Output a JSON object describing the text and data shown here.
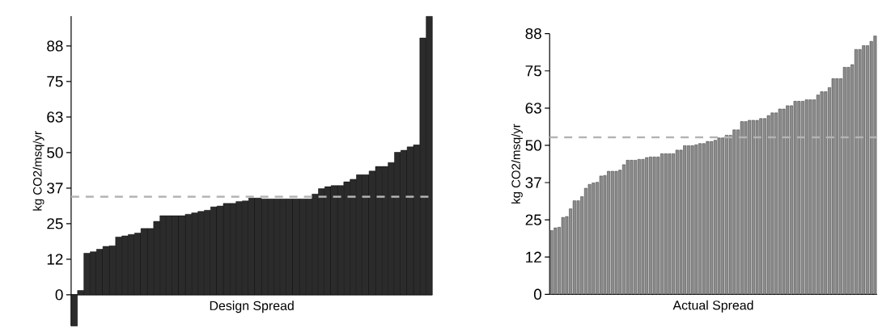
{
  "chart_data": [
    {
      "type": "bar",
      "xlabel": "Design Spread",
      "ylabel": "kg CO2/msq/yr",
      "color": "#2b2b2b",
      "tick_labels": "y",
      "categories": [
        null,
        null,
        null,
        null,
        null,
        null,
        null,
        null,
        null,
        null,
        null,
        null,
        null,
        null,
        null,
        null,
        null,
        null,
        null,
        null,
        null,
        null,
        null,
        null,
        null,
        null,
        null,
        null,
        null,
        null,
        null,
        null,
        null,
        null,
        null,
        null,
        null,
        null,
        null,
        null,
        null,
        null,
        null,
        null,
        null,
        null,
        null,
        null,
        null,
        null,
        null,
        null,
        null,
        null,
        null,
        null,
        null
      ],
      "values": [
        -11,
        1.5,
        14.6,
        15.1,
        16,
        17,
        17.2,
        20.3,
        20.7,
        21.2,
        21.7,
        23.3,
        23.3,
        25.8,
        27.8,
        27.8,
        27.8,
        27.8,
        28.3,
        28.8,
        29.3,
        29.7,
        30.9,
        31.2,
        32.1,
        32.1,
        32.8,
        33,
        34,
        34,
        33.7,
        33.7,
        33.7,
        33.7,
        33.7,
        33.7,
        33.7,
        33.7,
        35.4,
        37.3,
        38,
        38.4,
        38.4,
        39.7,
        40.6,
        42.2,
        42.2,
        43.5,
        45.1,
        45.1,
        46.5,
        50.1,
        50.8,
        52,
        52.7,
        90.3,
        97.9
      ],
      "ylim": [
        -11,
        98
      ],
      "yticks": [
        0,
        {
          "value": 12.5,
          "label": "12"
        },
        25,
        {
          "value": 37.5,
          "label": "37"
        },
        50,
        {
          "value": 62.5,
          "label": "63"
        },
        75,
        {
          "value": 87.5,
          "label": "88"
        }
      ],
      "ref_lines": [
        {
          "axis": "y",
          "value": 34.5,
          "color": "#b4b4b4",
          "line_style": "dashed"
        }
      ]
    },
    {
      "type": "bar",
      "xlabel": "Actual Spread",
      "ylabel": "kg CO2/msq/yr",
      "color": "#8c8c8c",
      "tick_labels": "y",
      "categories": [
        null,
        null,
        null,
        null,
        null,
        null,
        null,
        null,
        null,
        null,
        null,
        null,
        null,
        null,
        null,
        null,
        null,
        null,
        null,
        null,
        null,
        null,
        null,
        null,
        null,
        null,
        null,
        null,
        null,
        null,
        null,
        null,
        null,
        null,
        null,
        null,
        null,
        null,
        null,
        null,
        null,
        null,
        null,
        null,
        null,
        null,
        null,
        null,
        null,
        null,
        null,
        null,
        null,
        null,
        null,
        null,
        null,
        null,
        null,
        null,
        null,
        null,
        null,
        null,
        null,
        null,
        null,
        null,
        null,
        null,
        null,
        null,
        null,
        null,
        null,
        null,
        null,
        null,
        null,
        null,
        null,
        null,
        null,
        null,
        null,
        null
      ],
      "values": [
        21.4,
        22.3,
        22.5,
        25.8,
        26.1,
        28.7,
        31.4,
        31.4,
        32.8,
        35.6,
        36.9,
        37.4,
        37.6,
        39.7,
        39.9,
        41.3,
        41.3,
        41.3,
        41.7,
        43.5,
        45,
        45,
        45,
        45.3,
        45.3,
        45.9,
        46.1,
        46.1,
        46.1,
        47.2,
        47.2,
        47.2,
        47.2,
        48.4,
        48.4,
        49.9,
        49.9,
        49.9,
        50.2,
        50.6,
        50.6,
        51.3,
        51.3,
        51.7,
        52.5,
        52.5,
        53.4,
        53.4,
        55.2,
        55.2,
        58,
        58,
        58.4,
        58.4,
        58.4,
        59,
        59,
        60,
        60.9,
        60.9,
        62.2,
        62.2,
        63.3,
        63.3,
        64.8,
        64.8,
        64.8,
        65.3,
        65.3,
        65.3,
        66.9,
        68,
        68,
        69.4,
        72.4,
        72.4,
        72.4,
        76.2,
        76.2,
        77.1,
        82.2,
        82.2,
        83.5,
        83.5,
        84.9,
        86.7
      ],
      "ylim": [
        0,
        87.5
      ],
      "yticks": [
        0,
        {
          "value": 12.5,
          "label": "12"
        },
        25,
        {
          "value": 37.5,
          "label": "37"
        },
        50,
        {
          "value": 62.5,
          "label": "63"
        },
        75,
        {
          "value": 87.5,
          "label": "88"
        }
      ],
      "ref_lines": [
        {
          "axis": "y",
          "value": 52.7,
          "color": "#b4b4b4",
          "line_style": "dashed"
        }
      ]
    }
  ]
}
